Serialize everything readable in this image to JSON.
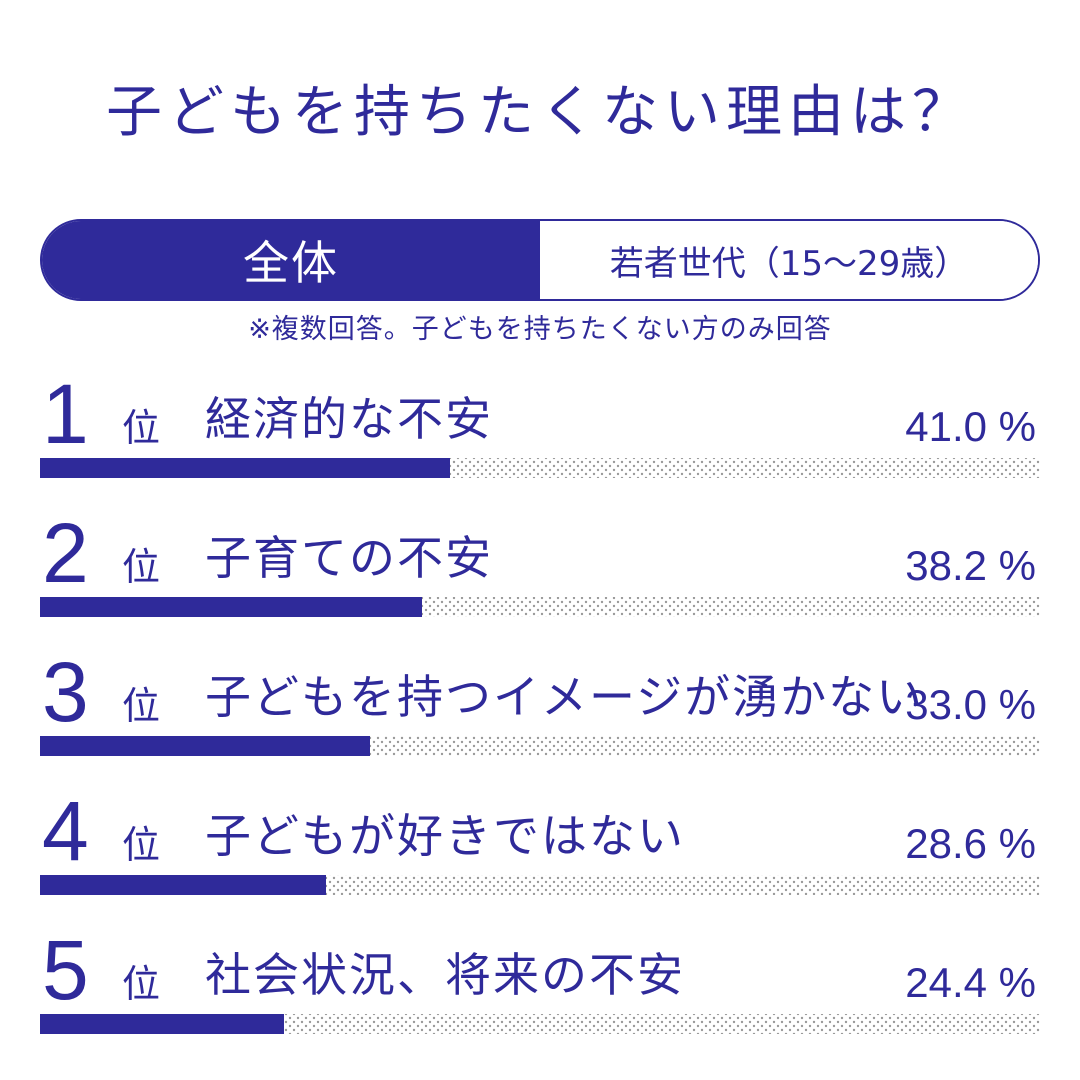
{
  "title": "子どもを持ちたくない理由は？",
  "tabs": {
    "all": "全体",
    "young": "若者世代（15～29歳）"
  },
  "note": "※複数回答。子どもを持ちたくない方のみ回答",
  "colors": {
    "accent": "#2f2a9a",
    "track_dots": "#9a9a9a",
    "background": "#ffffff"
  },
  "rank_suffix": "位",
  "percent_sign": "%",
  "chart_data": {
    "type": "bar",
    "orientation": "horizontal",
    "xlim": [
      0,
      100
    ],
    "categories": [
      "経済的な不安",
      "子育ての不安",
      "子どもを持つイメージが湧かない",
      "子どもが好きではない",
      "社会状況、将来の不安"
    ],
    "ranks": [
      "1",
      "2",
      "3",
      "4",
      "5"
    ],
    "values": [
      41.0,
      38.2,
      33.0,
      28.6,
      24.4
    ],
    "value_labels": [
      "41.0",
      "38.2",
      "33.0",
      "28.6",
      "24.4"
    ]
  }
}
